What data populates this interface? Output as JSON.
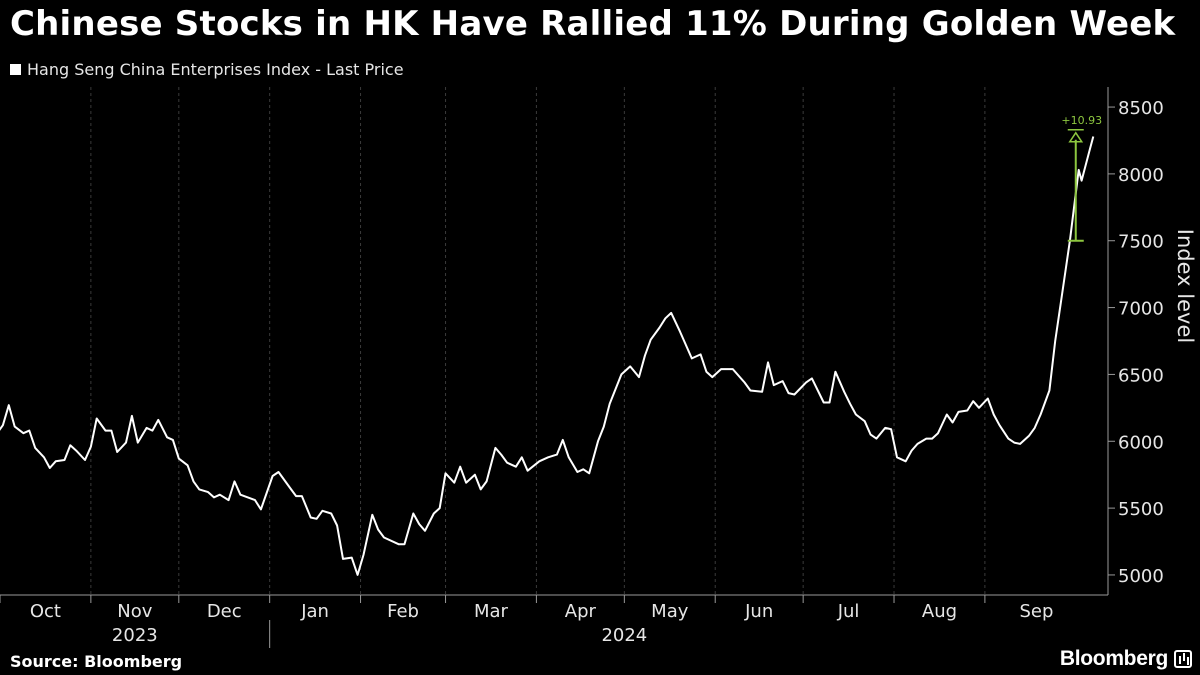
{
  "header": {
    "title": "Chinese Stocks in HK Have Rallied 11% During Golden Week"
  },
  "footer": {
    "source": "Source: Bloomberg",
    "brand": "Bloomberg",
    "brand_icon": "bloomberg-terminal-icon"
  },
  "colors": {
    "background": "#000000",
    "series": "#ffffff",
    "annotation": "#8dc63f",
    "grid": "#3a3a3a"
  },
  "chart_data": {
    "type": "line",
    "title": "Chinese Stocks in HK Have Rallied 11% During Golden Week",
    "ylabel": "Index level",
    "ylim": [
      4850,
      8650
    ],
    "yticks": [
      5000,
      5500,
      6000,
      6500,
      7000,
      7500,
      8000,
      8500
    ],
    "x_range": [
      "2023-10-01",
      "2024-10-13"
    ],
    "months": [
      {
        "label": "Oct",
        "start": "2023-10-01"
      },
      {
        "label": "Nov",
        "start": "2023-11-01"
      },
      {
        "label": "Dec",
        "start": "2023-12-01"
      },
      {
        "label": "Jan",
        "start": "2024-01-01"
      },
      {
        "label": "Feb",
        "start": "2024-02-01"
      },
      {
        "label": "Mar",
        "start": "2024-03-01"
      },
      {
        "label": "Apr",
        "start": "2024-04-01"
      },
      {
        "label": "May",
        "start": "2024-05-01"
      },
      {
        "label": "Jun",
        "start": "2024-06-01"
      },
      {
        "label": "Jul",
        "start": "2024-07-01"
      },
      {
        "label": "Aug",
        "start": "2024-08-01"
      },
      {
        "label": "Sep",
        "start": "2024-09-01"
      }
    ],
    "years": [
      {
        "label": "2023",
        "center": "2023-11-16"
      },
      {
        "label": "2024",
        "center": "2024-05-01"
      }
    ],
    "year_divider": "2024-01-01",
    "grid": "vertical-dashed",
    "legend_position": "top-left",
    "series": [
      {
        "name": "Hang Seng China Enterprises Index - Last Price",
        "points": [
          [
            "2023-09-28",
            6000
          ],
          [
            "2023-10-02",
            6120
          ],
          [
            "2023-10-04",
            6270
          ],
          [
            "2023-10-06",
            6110
          ],
          [
            "2023-10-09",
            6060
          ],
          [
            "2023-10-11",
            6080
          ],
          [
            "2023-10-13",
            5950
          ],
          [
            "2023-10-16",
            5880
          ],
          [
            "2023-10-18",
            5800
          ],
          [
            "2023-10-20",
            5850
          ],
          [
            "2023-10-23",
            5860
          ],
          [
            "2023-10-25",
            5970
          ],
          [
            "2023-10-27",
            5930
          ],
          [
            "2023-10-30",
            5860
          ],
          [
            "2023-11-01",
            5960
          ],
          [
            "2023-11-03",
            6170
          ],
          [
            "2023-11-06",
            6080
          ],
          [
            "2023-11-08",
            6080
          ],
          [
            "2023-11-10",
            5920
          ],
          [
            "2023-11-13",
            5990
          ],
          [
            "2023-11-15",
            6190
          ],
          [
            "2023-11-17",
            5990
          ],
          [
            "2023-11-20",
            6100
          ],
          [
            "2023-11-22",
            6080
          ],
          [
            "2023-11-24",
            6160
          ],
          [
            "2023-11-27",
            6030
          ],
          [
            "2023-11-29",
            6010
          ],
          [
            "2023-12-01",
            5870
          ],
          [
            "2023-12-04",
            5820
          ],
          [
            "2023-12-06",
            5700
          ],
          [
            "2023-12-08",
            5640
          ],
          [
            "2023-12-11",
            5620
          ],
          [
            "2023-12-13",
            5580
          ],
          [
            "2023-12-15",
            5600
          ],
          [
            "2023-12-18",
            5560
          ],
          [
            "2023-12-20",
            5700
          ],
          [
            "2023-12-22",
            5600
          ],
          [
            "2023-12-27",
            5560
          ],
          [
            "2023-12-29",
            5490
          ],
          [
            "2024-01-02",
            5740
          ],
          [
            "2024-01-04",
            5770
          ],
          [
            "2024-01-08",
            5650
          ],
          [
            "2024-01-10",
            5590
          ],
          [
            "2024-01-12",
            5590
          ],
          [
            "2024-01-15",
            5430
          ],
          [
            "2024-01-17",
            5420
          ],
          [
            "2024-01-19",
            5480
          ],
          [
            "2024-01-22",
            5460
          ],
          [
            "2024-01-24",
            5370
          ],
          [
            "2024-01-26",
            5120
          ],
          [
            "2024-01-29",
            5130
          ],
          [
            "2024-01-31",
            5000
          ],
          [
            "2024-02-02",
            5150
          ],
          [
            "2024-02-05",
            5450
          ],
          [
            "2024-02-07",
            5340
          ],
          [
            "2024-02-09",
            5280
          ],
          [
            "2024-02-14",
            5230
          ],
          [
            "2024-02-16",
            5230
          ],
          [
            "2024-02-19",
            5460
          ],
          [
            "2024-02-21",
            5380
          ],
          [
            "2024-02-23",
            5330
          ],
          [
            "2024-02-26",
            5460
          ],
          [
            "2024-02-28",
            5500
          ],
          [
            "2024-03-01",
            5760
          ],
          [
            "2024-03-04",
            5690
          ],
          [
            "2024-03-06",
            5810
          ],
          [
            "2024-03-08",
            5690
          ],
          [
            "2024-03-11",
            5750
          ],
          [
            "2024-03-13",
            5640
          ],
          [
            "2024-03-15",
            5700
          ],
          [
            "2024-03-18",
            5950
          ],
          [
            "2024-03-20",
            5900
          ],
          [
            "2024-03-22",
            5840
          ],
          [
            "2024-03-25",
            5810
          ],
          [
            "2024-03-27",
            5880
          ],
          [
            "2024-03-29",
            5780
          ],
          [
            "2024-04-02",
            5850
          ],
          [
            "2024-04-05",
            5880
          ],
          [
            "2024-04-08",
            5900
          ],
          [
            "2024-04-10",
            6010
          ],
          [
            "2024-04-12",
            5880
          ],
          [
            "2024-04-15",
            5770
          ],
          [
            "2024-04-17",
            5790
          ],
          [
            "2024-04-19",
            5760
          ],
          [
            "2024-04-22",
            6000
          ],
          [
            "2024-04-24",
            6110
          ],
          [
            "2024-04-26",
            6280
          ],
          [
            "2024-04-30",
            6500
          ],
          [
            "2024-05-03",
            6560
          ],
          [
            "2024-05-06",
            6480
          ],
          [
            "2024-05-08",
            6640
          ],
          [
            "2024-05-10",
            6760
          ],
          [
            "2024-05-13",
            6850
          ],
          [
            "2024-05-15",
            6920
          ],
          [
            "2024-05-17",
            6960
          ],
          [
            "2024-05-20",
            6820
          ],
          [
            "2024-05-22",
            6720
          ],
          [
            "2024-05-24",
            6620
          ],
          [
            "2024-05-27",
            6650
          ],
          [
            "2024-05-29",
            6520
          ],
          [
            "2024-05-31",
            6480
          ],
          [
            "2024-06-03",
            6540
          ],
          [
            "2024-06-05",
            6540
          ],
          [
            "2024-06-07",
            6540
          ],
          [
            "2024-06-11",
            6440
          ],
          [
            "2024-06-13",
            6380
          ],
          [
            "2024-06-17",
            6370
          ],
          [
            "2024-06-19",
            6590
          ],
          [
            "2024-06-21",
            6420
          ],
          [
            "2024-06-24",
            6450
          ],
          [
            "2024-06-26",
            6360
          ],
          [
            "2024-06-28",
            6350
          ],
          [
            "2024-07-02",
            6440
          ],
          [
            "2024-07-04",
            6470
          ],
          [
            "2024-07-08",
            6290
          ],
          [
            "2024-07-10",
            6290
          ],
          [
            "2024-07-12",
            6520
          ],
          [
            "2024-07-15",
            6370
          ],
          [
            "2024-07-17",
            6280
          ],
          [
            "2024-07-19",
            6200
          ],
          [
            "2024-07-22",
            6150
          ],
          [
            "2024-07-24",
            6050
          ],
          [
            "2024-07-26",
            6020
          ],
          [
            "2024-07-29",
            6100
          ],
          [
            "2024-07-31",
            6090
          ],
          [
            "2024-08-02",
            5880
          ],
          [
            "2024-08-05",
            5850
          ],
          [
            "2024-08-07",
            5930
          ],
          [
            "2024-08-09",
            5980
          ],
          [
            "2024-08-12",
            6020
          ],
          [
            "2024-08-14",
            6020
          ],
          [
            "2024-08-16",
            6060
          ],
          [
            "2024-08-19",
            6200
          ],
          [
            "2024-08-21",
            6140
          ],
          [
            "2024-08-23",
            6220
          ],
          [
            "2024-08-26",
            6230
          ],
          [
            "2024-08-28",
            6300
          ],
          [
            "2024-08-30",
            6250
          ],
          [
            "2024-09-02",
            6320
          ],
          [
            "2024-09-04",
            6200
          ],
          [
            "2024-09-06",
            6120
          ],
          [
            "2024-09-09",
            6020
          ],
          [
            "2024-09-11",
            5990
          ],
          [
            "2024-09-13",
            5980
          ],
          [
            "2024-09-16",
            6040
          ],
          [
            "2024-09-18",
            6100
          ],
          [
            "2024-09-20",
            6200
          ],
          [
            "2024-09-23",
            6380
          ],
          [
            "2024-09-25",
            6750
          ],
          [
            "2024-09-27",
            7050
          ],
          [
            "2024-09-30",
            7500
          ],
          [
            "2024-10-03",
            8030
          ],
          [
            "2024-10-04",
            7950
          ],
          [
            "2024-10-07",
            8200
          ],
          [
            "2024-10-08",
            8280
          ]
        ]
      }
    ],
    "annotations": [
      {
        "type": "range-bracket",
        "label": "+10.93",
        "date": "2024-10-02",
        "from": 7500,
        "to": 8300,
        "color": "#8dc63f"
      }
    ]
  }
}
